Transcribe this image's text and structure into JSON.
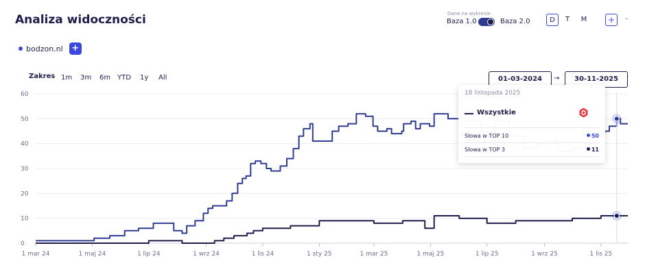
{
  "header": {
    "title": "Analiza widoczności",
    "domain": "bodzon.nl",
    "add_label": "+",
    "base_caption": "Dane na wykresie",
    "base1": "Baza 1.0",
    "base2": "Baza 2.0",
    "granularity": [
      "D",
      "T",
      "M"
    ],
    "granularity_active": "D",
    "zoom_plus": "+",
    "zoom_minus": "-"
  },
  "controls": {
    "range_label": "Zakres",
    "ranges": [
      "1m",
      "3m",
      "6m",
      "YTD",
      "1y",
      "All"
    ],
    "date_from": "01-03-2024",
    "date_arrow": "→",
    "date_to": "30-11-2025"
  },
  "tooltip": {
    "date": "18 listopada 2025",
    "series": "Wszystkie",
    "rows": [
      {
        "label": "Słowa w TOP 10",
        "value": "50"
      },
      {
        "label": "Słowa w TOP 3",
        "value": "11"
      }
    ]
  },
  "colors": {
    "top10": "#2f3a93",
    "top3": "#1c1d4a",
    "accent": "#3b48e0",
    "grid": "#ececf2"
  },
  "chart_data": {
    "type": "line",
    "ylim": [
      0,
      60
    ],
    "yticks": [
      "0",
      "10",
      "20",
      "30",
      "40",
      "50",
      "60"
    ],
    "xlim": [
      "2024-03-01",
      "2025-11-30"
    ],
    "xticks": [
      {
        "date": "2024-03-01",
        "label": "1 mar 24"
      },
      {
        "date": "2024-05-01",
        "label": "1 maj 24"
      },
      {
        "date": "2024-07-01",
        "label": "1 lip 24"
      },
      {
        "date": "2024-09-01",
        "label": "1 wrz 24"
      },
      {
        "date": "2024-11-01",
        "label": "1 lis 24"
      },
      {
        "date": "2025-01-01",
        "label": "1 sty 25"
      },
      {
        "date": "2025-03-01",
        "label": "1 mar 25"
      },
      {
        "date": "2025-05-01",
        "label": "1 maj 25"
      },
      {
        "date": "2025-07-01",
        "label": "1 lip 25"
      },
      {
        "date": "2025-09-01",
        "label": "1 wrz 25"
      },
      {
        "date": "2025-11-01",
        "label": "1 lis 25"
      }
    ],
    "series": [
      {
        "name": "Słowa w TOP 10",
        "points": [
          [
            "2024-03-01",
            1
          ],
          [
            "2024-05-01",
            1
          ],
          [
            "2024-05-03",
            2
          ],
          [
            "2024-05-20",
            3
          ],
          [
            "2024-06-05",
            5
          ],
          [
            "2024-06-20",
            6
          ],
          [
            "2024-07-01",
            6
          ],
          [
            "2024-07-06",
            8
          ],
          [
            "2024-07-25",
            8
          ],
          [
            "2024-07-28",
            5
          ],
          [
            "2024-08-06",
            4
          ],
          [
            "2024-08-11",
            7
          ],
          [
            "2024-08-20",
            9
          ],
          [
            "2024-08-27",
            9
          ],
          [
            "2024-08-29",
            12
          ],
          [
            "2024-09-03",
            14
          ],
          [
            "2024-09-08",
            15
          ],
          [
            "2024-09-18",
            15
          ],
          [
            "2024-09-23",
            17
          ],
          [
            "2024-09-29",
            20
          ],
          [
            "2024-10-05",
            24
          ],
          [
            "2024-10-10",
            26
          ],
          [
            "2024-10-14",
            27
          ],
          [
            "2024-10-19",
            32
          ],
          [
            "2024-10-24",
            33
          ],
          [
            "2024-10-30",
            32
          ],
          [
            "2024-11-05",
            30
          ],
          [
            "2024-11-10",
            29
          ],
          [
            "2024-11-20",
            31
          ],
          [
            "2024-11-27",
            34
          ],
          [
            "2024-12-04",
            38
          ],
          [
            "2024-12-10",
            43
          ],
          [
            "2024-12-15",
            46
          ],
          [
            "2024-12-22",
            48
          ],
          [
            "2024-12-25",
            41
          ],
          [
            "2025-01-05",
            41
          ],
          [
            "2025-01-15",
            45
          ],
          [
            "2025-01-22",
            47
          ],
          [
            "2025-02-01",
            48
          ],
          [
            "2025-02-10",
            52
          ],
          [
            "2025-02-20",
            51
          ],
          [
            "2025-02-28",
            47
          ],
          [
            "2025-03-05",
            45
          ],
          [
            "2025-03-15",
            46
          ],
          [
            "2025-03-20",
            44
          ],
          [
            "2025-03-31",
            45
          ],
          [
            "2025-04-02",
            48
          ],
          [
            "2025-04-10",
            49
          ],
          [
            "2025-04-15",
            46
          ],
          [
            "2025-04-20",
            48
          ],
          [
            "2025-04-30",
            47
          ],
          [
            "2025-05-05",
            52
          ],
          [
            "2025-05-15",
            52
          ],
          [
            "2025-05-20",
            50
          ],
          [
            "2025-05-31",
            50
          ],
          [
            "2025-06-10",
            49
          ],
          [
            "2025-06-25",
            45
          ],
          [
            "2025-07-10",
            49
          ],
          [
            "2025-07-25",
            43
          ],
          [
            "2025-08-10",
            38
          ],
          [
            "2025-08-25",
            40
          ],
          [
            "2025-09-05",
            41
          ],
          [
            "2025-09-15",
            37
          ],
          [
            "2025-10-01",
            38
          ],
          [
            "2025-10-15",
            40
          ],
          [
            "2025-10-25",
            44
          ],
          [
            "2025-11-05",
            45
          ],
          [
            "2025-11-10",
            47
          ],
          [
            "2025-11-18",
            50
          ],
          [
            "2025-11-22",
            48
          ],
          [
            "2025-11-30",
            48
          ]
        ]
      },
      {
        "name": "Słowa w TOP 3",
        "points": [
          [
            "2024-03-01",
            0
          ],
          [
            "2024-06-30",
            0
          ],
          [
            "2024-07-01",
            1
          ],
          [
            "2024-08-05",
            1
          ],
          [
            "2024-08-06",
            0
          ],
          [
            "2024-09-05",
            0
          ],
          [
            "2024-09-10",
            1
          ],
          [
            "2024-09-20",
            2
          ],
          [
            "2024-10-01",
            3
          ],
          [
            "2024-10-15",
            4
          ],
          [
            "2024-10-22",
            5
          ],
          [
            "2024-11-01",
            6
          ],
          [
            "2024-12-01",
            7
          ],
          [
            "2025-01-01",
            9
          ],
          [
            "2025-02-01",
            9
          ],
          [
            "2025-03-01",
            8
          ],
          [
            "2025-04-01",
            9
          ],
          [
            "2025-04-25",
            6
          ],
          [
            "2025-05-05",
            11
          ],
          [
            "2025-06-01",
            10
          ],
          [
            "2025-07-01",
            8
          ],
          [
            "2025-08-01",
            9
          ],
          [
            "2025-09-01",
            9
          ],
          [
            "2025-10-01",
            10
          ],
          [
            "2025-11-01",
            11
          ],
          [
            "2025-11-30",
            11
          ]
        ]
      }
    ]
  }
}
